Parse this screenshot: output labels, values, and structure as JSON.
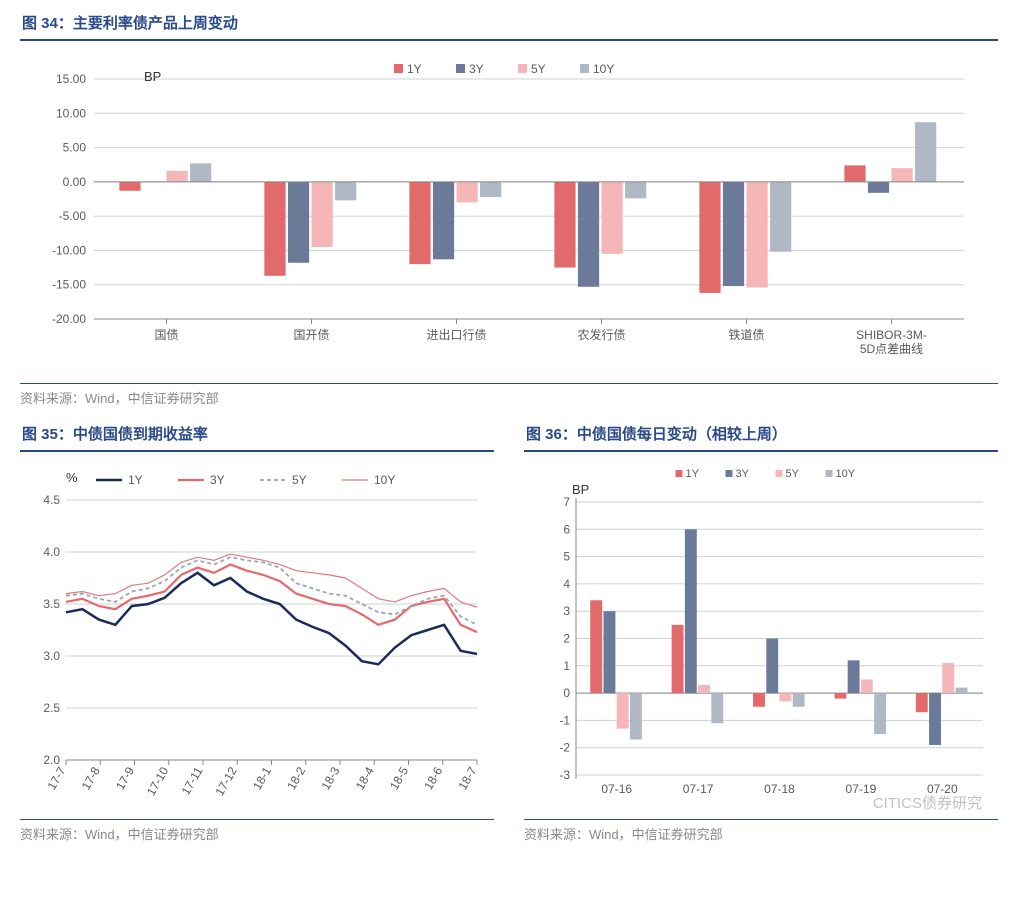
{
  "chart34": {
    "title": "图 34：主要利率债产品上周变动",
    "unit": "BP",
    "source": "资料来源：Wind，中信证券研究部",
    "type": "bar",
    "legend": [
      "1Y",
      "3Y",
      "5Y",
      "10Y"
    ],
    "series_colors": [
      "#e26a6a",
      "#6b7a99",
      "#f4b6b6",
      "#b0b8c6"
    ],
    "categories": [
      "国债",
      "国开债",
      "进出口行债",
      "农发行债",
      "铁道债",
      "SHIBOR-3M-\n5D点差曲线"
    ],
    "values": [
      [
        -1.3,
        0,
        1.6,
        2.7
      ],
      [
        -13.7,
        -11.8,
        -9.5,
        -2.7
      ],
      [
        -12.0,
        -11.3,
        -3.0,
        -2.2
      ],
      [
        -12.5,
        -15.3,
        -10.5,
        -2.4
      ],
      [
        -16.2,
        -15.2,
        -15.4,
        -10.2
      ],
      [
        2.4,
        -1.6,
        2.0,
        8.7
      ]
    ],
    "ylim": [
      -20,
      15
    ],
    "ytick_step": 5,
    "ytick_format": "0.00",
    "grid_color": "#d0d0d0",
    "axis_color": "#888888",
    "bar_group_gap": 0.35,
    "label_fontsize": 12,
    "unit_fontsize": 13
  },
  "chart35": {
    "title": "图 35：中债国债到期收益率",
    "unit": "%",
    "source": "资料来源：Wind，中信证券研究部",
    "type": "line",
    "legend": [
      "1Y",
      "3Y",
      "5Y",
      "10Y"
    ],
    "series_colors": [
      "#1a2a5a",
      "#e26a6a",
      "#9aa4b5",
      "#e07b7b"
    ],
    "series_widths": [
      2.5,
      2.2,
      1.8,
      1.2
    ],
    "series_dash": [
      "",
      "",
      "4 3",
      ""
    ],
    "x_labels": [
      "17-7",
      "17-8",
      "17-9",
      "17-10",
      "17-11",
      "17-12",
      "18-1",
      "18-2",
      "18-3",
      "18-4",
      "18-5",
      "18-6",
      "18-7"
    ],
    "ylim": [
      2.0,
      4.5
    ],
    "ytick_step": 0.5,
    "grid_color": "#d0d0d0",
    "axis_color": "#888888",
    "series": {
      "1Y": [
        3.42,
        3.45,
        3.35,
        3.3,
        3.48,
        3.5,
        3.56,
        3.7,
        3.8,
        3.68,
        3.75,
        3.62,
        3.55,
        3.5,
        3.35,
        3.28,
        3.22,
        3.1,
        2.95,
        2.92,
        3.08,
        3.2,
        3.25,
        3.3,
        3.05,
        3.02
      ],
      "3Y": [
        3.52,
        3.55,
        3.48,
        3.45,
        3.55,
        3.58,
        3.62,
        3.78,
        3.85,
        3.8,
        3.88,
        3.82,
        3.78,
        3.72,
        3.6,
        3.55,
        3.5,
        3.48,
        3.4,
        3.3,
        3.35,
        3.48,
        3.52,
        3.55,
        3.3,
        3.23
      ],
      "5Y": [
        3.58,
        3.6,
        3.55,
        3.52,
        3.62,
        3.65,
        3.72,
        3.85,
        3.92,
        3.88,
        3.95,
        3.92,
        3.9,
        3.85,
        3.7,
        3.65,
        3.6,
        3.58,
        3.5,
        3.42,
        3.4,
        3.48,
        3.55,
        3.58,
        3.38,
        3.3
      ],
      "10Y": [
        3.6,
        3.62,
        3.58,
        3.6,
        3.68,
        3.7,
        3.78,
        3.9,
        3.95,
        3.92,
        3.98,
        3.95,
        3.92,
        3.88,
        3.82,
        3.8,
        3.78,
        3.75,
        3.65,
        3.55,
        3.52,
        3.58,
        3.62,
        3.65,
        3.52,
        3.47
      ]
    },
    "label_fontsize": 11
  },
  "chart36": {
    "title": "图 36：中债国债每日变动（相较上周）",
    "unit": "BP",
    "source": "资料来源：Wind，中信证券研究部",
    "type": "bar",
    "legend": [
      "1Y",
      "3Y",
      "5Y",
      "10Y"
    ],
    "series_colors": [
      "#e26a6a",
      "#6b7a99",
      "#f4b6b6",
      "#b0b8c6"
    ],
    "categories": [
      "07-16",
      "07-17",
      "07-18",
      "07-19",
      "07-20"
    ],
    "values": [
      [
        3.4,
        3.0,
        -1.3,
        -1.7
      ],
      [
        2.5,
        6.0,
        0.3,
        -1.1
      ],
      [
        -0.5,
        2.0,
        -0.3,
        -0.5
      ],
      [
        -0.2,
        1.2,
        0.5,
        -1.5
      ],
      [
        -0.7,
        -1.9,
        1.1,
        0.2
      ]
    ],
    "ylim": [
      -3,
      7
    ],
    "ytick_step": 1,
    "grid_color": "#d0d0d0",
    "axis_color": "#888888",
    "label_fontsize": 11
  },
  "watermark": "CITICS债券研究"
}
